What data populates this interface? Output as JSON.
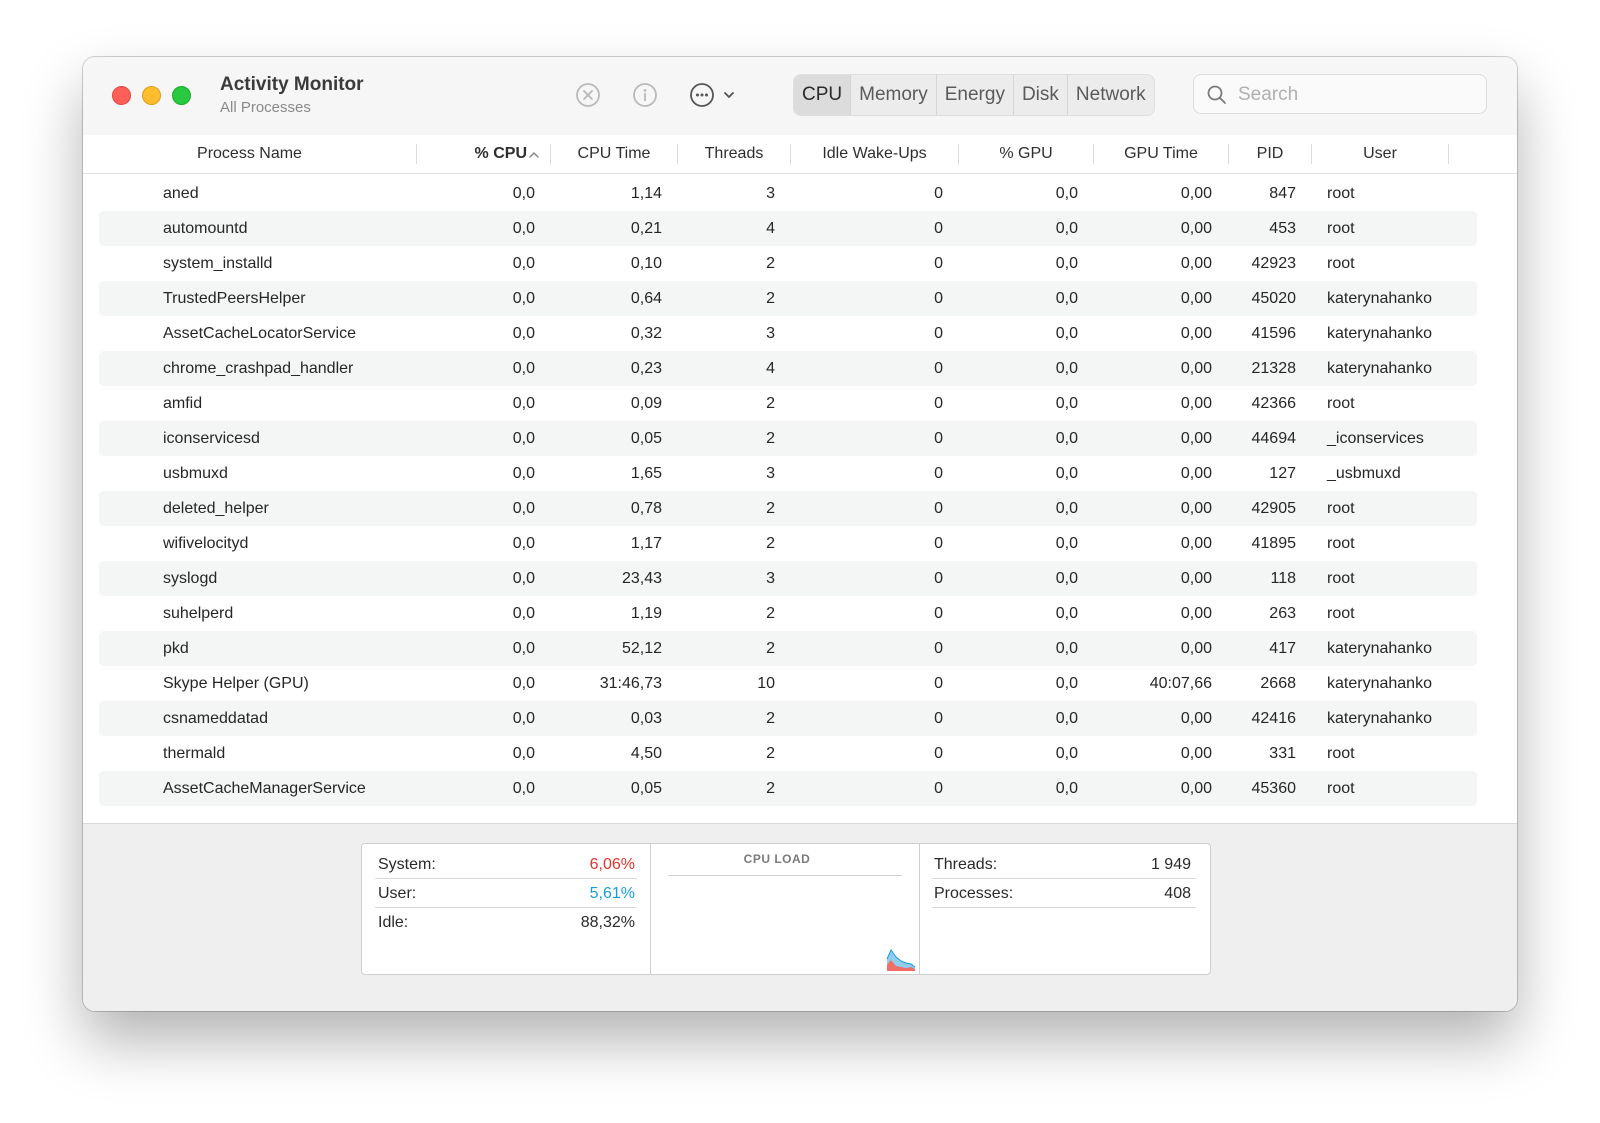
{
  "app": {
    "title": "Activity Monitor",
    "subtitle": "All Processes"
  },
  "toolbar": {
    "buttons": [
      {
        "icon": "stop-process-icon"
      },
      {
        "icon": "info-icon"
      },
      {
        "icon": "more-actions-icon"
      }
    ],
    "tabs": [
      "CPU",
      "Memory",
      "Energy",
      "Disk",
      "Network"
    ],
    "active_tab": "CPU",
    "search_placeholder": "Search"
  },
  "table": {
    "columns": [
      "Process Name",
      "% CPU",
      "CPU Time",
      "Threads",
      "Idle Wake-Ups",
      "% GPU",
      "GPU Time",
      "PID",
      "User"
    ],
    "sorted_column": "% CPU",
    "rows": [
      {
        "name": "aned",
        "cpu": "0,0",
        "cpu_time": "1,14",
        "threads": "3",
        "idle": "0",
        "gpu": "0,0",
        "gpu_time": "0,00",
        "pid": "847",
        "user": "root"
      },
      {
        "name": "automountd",
        "cpu": "0,0",
        "cpu_time": "0,21",
        "threads": "4",
        "idle": "0",
        "gpu": "0,0",
        "gpu_time": "0,00",
        "pid": "453",
        "user": "root"
      },
      {
        "name": "system_installd",
        "cpu": "0,0",
        "cpu_time": "0,10",
        "threads": "2",
        "idle": "0",
        "gpu": "0,0",
        "gpu_time": "0,00",
        "pid": "42923",
        "user": "root"
      },
      {
        "name": "TrustedPeersHelper",
        "cpu": "0,0",
        "cpu_time": "0,64",
        "threads": "2",
        "idle": "0",
        "gpu": "0,0",
        "gpu_time": "0,00",
        "pid": "45020",
        "user": "katerynahanko"
      },
      {
        "name": "AssetCacheLocatorService",
        "cpu": "0,0",
        "cpu_time": "0,32",
        "threads": "3",
        "idle": "0",
        "gpu": "0,0",
        "gpu_time": "0,00",
        "pid": "41596",
        "user": "katerynahanko"
      },
      {
        "name": "chrome_crashpad_handler",
        "cpu": "0,0",
        "cpu_time": "0,23",
        "threads": "4",
        "idle": "0",
        "gpu": "0,0",
        "gpu_time": "0,00",
        "pid": "21328",
        "user": "katerynahanko"
      },
      {
        "name": "amfid",
        "cpu": "0,0",
        "cpu_time": "0,09",
        "threads": "2",
        "idle": "0",
        "gpu": "0,0",
        "gpu_time": "0,00",
        "pid": "42366",
        "user": "root"
      },
      {
        "name": "iconservicesd",
        "cpu": "0,0",
        "cpu_time": "0,05",
        "threads": "2",
        "idle": "0",
        "gpu": "0,0",
        "gpu_time": "0,00",
        "pid": "44694",
        "user": "_iconservices"
      },
      {
        "name": "usbmuxd",
        "cpu": "0,0",
        "cpu_time": "1,65",
        "threads": "3",
        "idle": "0",
        "gpu": "0,0",
        "gpu_time": "0,00",
        "pid": "127",
        "user": "_usbmuxd"
      },
      {
        "name": "deleted_helper",
        "cpu": "0,0",
        "cpu_time": "0,78",
        "threads": "2",
        "idle": "0",
        "gpu": "0,0",
        "gpu_time": "0,00",
        "pid": "42905",
        "user": "root"
      },
      {
        "name": "wifivelocityd",
        "cpu": "0,0",
        "cpu_time": "1,17",
        "threads": "2",
        "idle": "0",
        "gpu": "0,0",
        "gpu_time": "0,00",
        "pid": "41895",
        "user": "root"
      },
      {
        "name": "syslogd",
        "cpu": "0,0",
        "cpu_time": "23,43",
        "threads": "3",
        "idle": "0",
        "gpu": "0,0",
        "gpu_time": "0,00",
        "pid": "118",
        "user": "root"
      },
      {
        "name": "suhelperd",
        "cpu": "0,0",
        "cpu_time": "1,19",
        "threads": "2",
        "idle": "0",
        "gpu": "0,0",
        "gpu_time": "0,00",
        "pid": "263",
        "user": "root"
      },
      {
        "name": "pkd",
        "cpu": "0,0",
        "cpu_time": "52,12",
        "threads": "2",
        "idle": "0",
        "gpu": "0,0",
        "gpu_time": "0,00",
        "pid": "417",
        "user": "katerynahanko"
      },
      {
        "name": "Skype Helper (GPU)",
        "cpu": "0,0",
        "cpu_time": "31:46,73",
        "threads": "10",
        "idle": "0",
        "gpu": "0,0",
        "gpu_time": "40:07,66",
        "pid": "2668",
        "user": "katerynahanko"
      },
      {
        "name": "csnameddatad",
        "cpu": "0,0",
        "cpu_time": "0,03",
        "threads": "2",
        "idle": "0",
        "gpu": "0,0",
        "gpu_time": "0,00",
        "pid": "42416",
        "user": "katerynahanko"
      },
      {
        "name": "thermald",
        "cpu": "0,0",
        "cpu_time": "4,50",
        "threads": "2",
        "idle": "0",
        "gpu": "0,0",
        "gpu_time": "0,00",
        "pid": "331",
        "user": "root"
      },
      {
        "name": "AssetCacheManagerService",
        "cpu": "0,0",
        "cpu_time": "0,05",
        "threads": "2",
        "idle": "0",
        "gpu": "0,0",
        "gpu_time": "0,00",
        "pid": "45360",
        "user": "root"
      }
    ]
  },
  "footer": {
    "cpu_stats": [
      {
        "label": "System:",
        "value": "6,06%",
        "color": "#e0362c"
      },
      {
        "label": "User:",
        "value": "5,61%",
        "color": "#1a9bdc"
      },
      {
        "label": "Idle:",
        "value": "88,32%",
        "color": "#2a2a2a"
      }
    ],
    "cpu_load_title": "CPU LOAD",
    "counts": [
      {
        "label": "Threads:",
        "value": "1 949"
      },
      {
        "label": "Processes:",
        "value": "408"
      }
    ]
  },
  "colors": {
    "close": "#fe5f57",
    "minimize": "#febc2e",
    "maximize": "#28c840",
    "system_load": "#e0362c",
    "user_load": "#1a9bdc"
  }
}
